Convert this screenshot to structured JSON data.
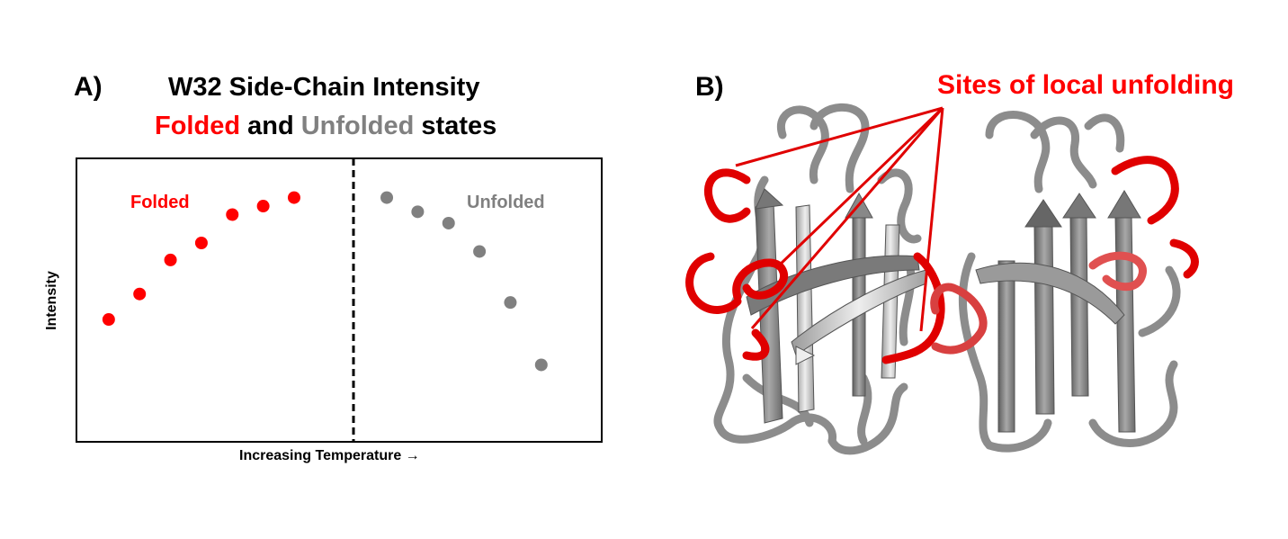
{
  "panel_a": {
    "label": "A)",
    "title_line1": "W32 Side-Chain Intensity",
    "title_line2": {
      "folded": "Folded",
      "and": " and ",
      "unfolded": "Unfolded",
      "states": " states"
    },
    "region_folded": "Folded",
    "region_unfolded": "Unfolded",
    "xlabel": "Increasing Temperature →",
    "ylabel": "Intensity"
  },
  "panel_b": {
    "label": "B)",
    "annotation": "Sites of local unfolding"
  },
  "colors": {
    "folded": "#ff0000",
    "unfolded": "#808080",
    "ribbon_grey": "#8c8c8c",
    "ribbon_red": "#e00000"
  },
  "chart_data": {
    "type": "scatter",
    "xlabel": "Increasing Temperature →",
    "ylabel": "Intensity",
    "divider_x": 9,
    "series": [
      {
        "name": "Folded",
        "color": "#ff0000",
        "x": [
          1,
          2,
          3,
          4,
          5,
          6,
          7
        ],
        "y": [
          0.43,
          0.52,
          0.64,
          0.7,
          0.8,
          0.83,
          0.86
        ]
      },
      {
        "name": "Unfolded",
        "color": "#808080",
        "x": [
          10,
          11,
          12,
          13,
          14,
          15
        ],
        "y": [
          0.86,
          0.81,
          0.77,
          0.67,
          0.49,
          0.27
        ]
      }
    ]
  }
}
